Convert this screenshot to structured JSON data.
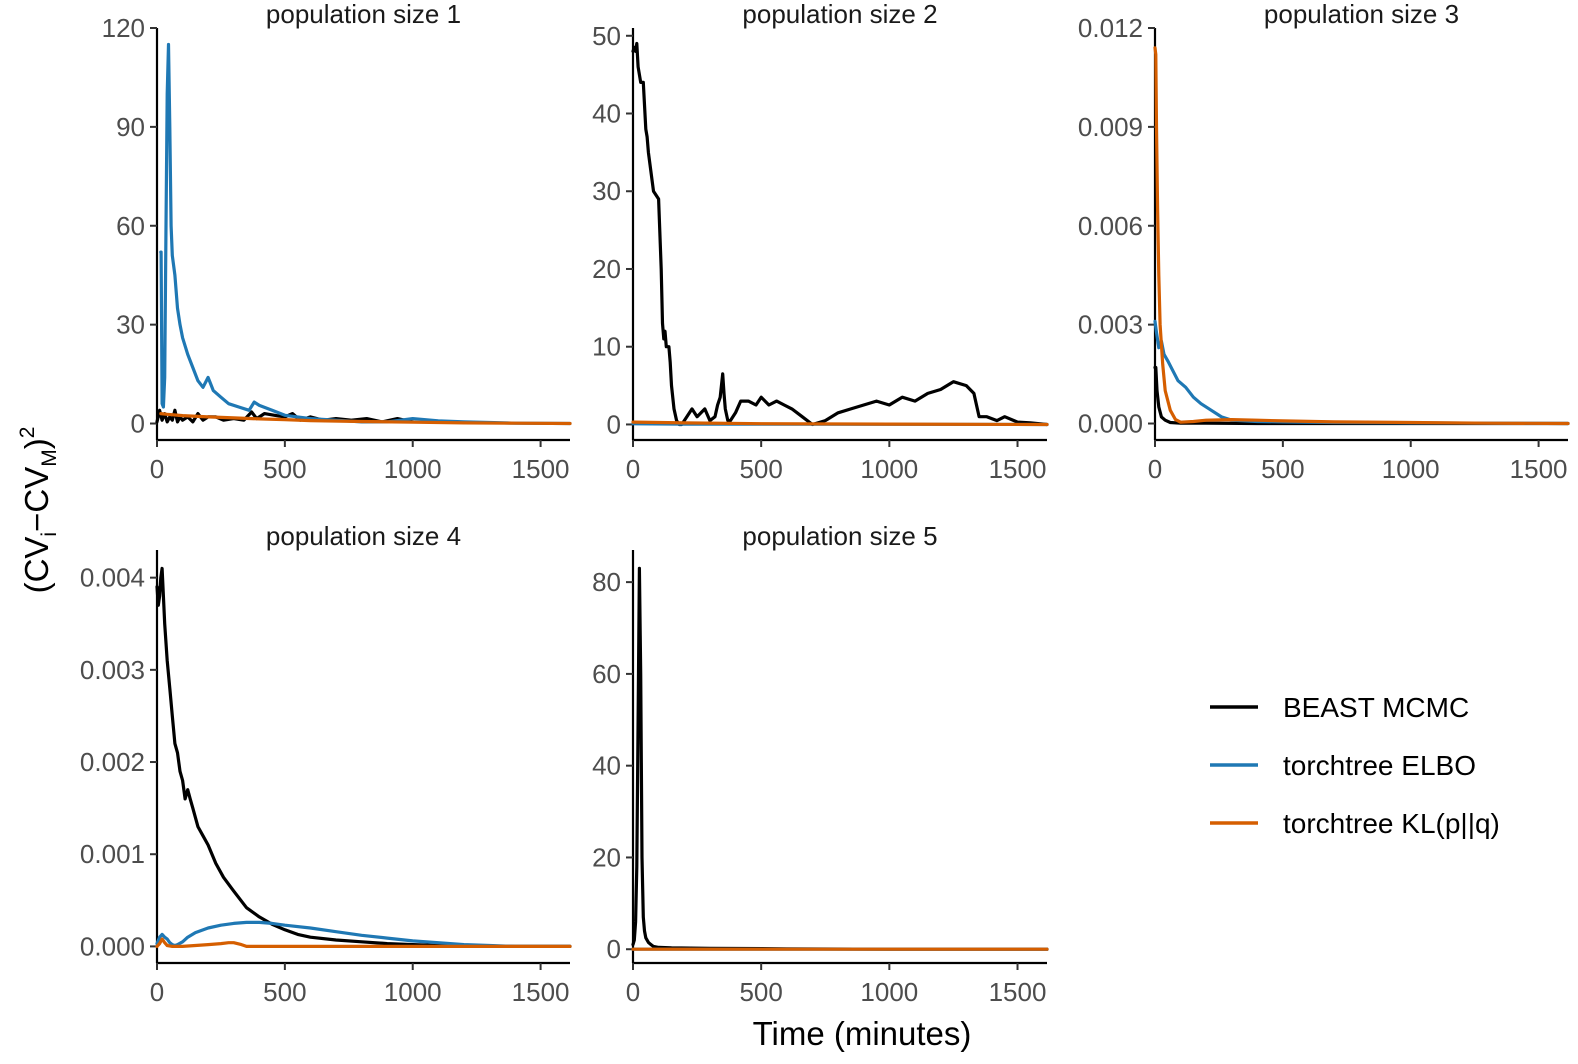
{
  "chart_data": {
    "type": "line",
    "xlabel": "Time (minutes)",
    "ylabel": {
      "open": "(",
      "cv1": "CV",
      "sub1": "i",
      "minus": "−",
      "cv2": "CV",
      "sub2": "M",
      "close": ")",
      "power": "2"
    },
    "legend_position": "right",
    "grid": false,
    "series_names": [
      "BEAST MCMC",
      "torchtree ELBO",
      "torchtree KL(p||q)"
    ],
    "colors": {
      "BEAST MCMC": "#000000",
      "torchtree ELBO": "#1f78b4",
      "torchtree KL(p||q)": "#d55e00"
    },
    "xlim": [
      0,
      1615
    ],
    "xticks": [
      0,
      500,
      1000,
      1500
    ],
    "xtick_labels": [
      "0",
      "500",
      "1000",
      "1500"
    ],
    "panels": [
      {
        "title": "population size 1",
        "ylim": [
          -5,
          120
        ],
        "yticks": [
          0,
          30,
          60,
          90,
          120
        ],
        "ytick_labels": [
          "0",
          "30",
          "60",
          "90",
          "120"
        ],
        "series": [
          {
            "name": "BEAST MCMC",
            "x": [
              0,
              10,
              20,
              30,
              40,
              50,
              60,
              70,
              80,
              90,
              100,
              120,
              140,
              160,
              180,
              200,
              230,
              260,
              300,
              340,
              370,
              390,
              420,
              460,
              500,
              530,
              560,
              600,
              650,
              700,
              760,
              820,
              880,
              940,
              1000
            ],
            "y": [
              0.5,
              4,
              1,
              3,
              0.5,
              2,
              1,
              4,
              0.5,
              2,
              1,
              2,
              0.5,
              3,
              1,
              2,
              2,
              1,
              1.5,
              1,
              3.5,
              1.5,
              3,
              2.5,
              2,
              3,
              1,
              2,
              1,
              1.5,
              1,
              1.5,
              0.5,
              1.5,
              0.5
            ]
          },
          {
            "name": "torchtree ELBO",
            "x": [
              15,
              16,
              20,
              25,
              30,
              35,
              40,
              45,
              50,
              55,
              60,
              70,
              80,
              90,
              100,
              120,
              140,
              160,
              180,
              200,
              220,
              250,
              280,
              320,
              360,
              380,
              400,
              450,
              500,
              600,
              700,
              800,
              900,
              1000,
              1100,
              1200,
              1300,
              1400,
              1615
            ],
            "y": [
              52,
              52,
              6,
              5,
              14,
              60,
              100,
              115,
              90,
              60,
              51,
              45,
              35,
              30,
              26,
              21,
              17,
              13,
              11,
              14,
              10,
              8,
              6,
              5,
              4,
              6.5,
              5.5,
              4,
              2.5,
              1.5,
              1,
              0.5,
              0.5,
              1.5,
              0.8,
              0.5,
              0.3,
              0.1,
              0
            ]
          },
          {
            "name": "torchtree KL(p||q)",
            "x": [
              15,
              40,
              100,
              200,
              300,
              400,
              500,
              600,
              800,
              1000,
              1200,
              1400,
              1615
            ],
            "y": [
              3,
              2.8,
              2.4,
              2,
              1.7,
              1.4,
              1.2,
              0.9,
              0.6,
              0.4,
              0.2,
              0.1,
              0
            ]
          }
        ]
      },
      {
        "title": "population size 2",
        "ylim": [
          -2,
          51
        ],
        "yticks": [
          0,
          10,
          20,
          30,
          40,
          50
        ],
        "ytick_labels": [
          "0",
          "10",
          "20",
          "30",
          "40",
          "50"
        ],
        "series": [
          {
            "name": "BEAST MCMC",
            "x": [
              0,
              5,
              10,
              15,
              20,
              30,
              40,
              50,
              55,
              60,
              80,
              100,
              110,
              115,
              120,
              125,
              130,
              140,
              145,
              150,
              160,
              170,
              180,
              190,
              200,
              230,
              250,
              280,
              300,
              320,
              330,
              340,
              350,
              355,
              360,
              370,
              380,
              400,
              420,
              450,
              480,
              500,
              530,
              560,
              590,
              620,
              660,
              700,
              750,
              800,
              850,
              900,
              950,
              1000,
              1050,
              1100,
              1150,
              1200,
              1250,
              1300,
              1330,
              1350,
              1380,
              1420,
              1450,
              1500,
              1550,
              1615
            ],
            "y": [
              48,
              48.5,
              48,
              49,
              46,
              44,
              44,
              38,
              37,
              35,
              30,
              29,
              20,
              13,
              11,
              12,
              10,
              10,
              8,
              5,
              2,
              0.5,
              0,
              0,
              0.5,
              2,
              1,
              2,
              0.5,
              1,
              2.5,
              3.5,
              6.5,
              4,
              2,
              0.5,
              0.5,
              1.5,
              3,
              3,
              2.5,
              3.5,
              2.5,
              3,
              2.5,
              2,
              1,
              0,
              0.5,
              1.5,
              2,
              2.5,
              3,
              2.5,
              3.5,
              3,
              4,
              4.5,
              5.5,
              5,
              4,
              1,
              1,
              0.5,
              1,
              0.3,
              0.2,
              0
            ]
          },
          {
            "name": "torchtree ELBO",
            "x": [
              0,
              200,
              500,
              1000,
              1615
            ],
            "y": [
              0.1,
              0.05,
              0.05,
              0.02,
              0
            ]
          },
          {
            "name": "torchtree KL(p||q)",
            "x": [
              0,
              200,
              500,
              1000,
              1615
            ],
            "y": [
              0.3,
              0.2,
              0.1,
              0.05,
              0
            ]
          }
        ]
      },
      {
        "title": "population size 3",
        "ylim": [
          -0.0005,
          0.012
        ],
        "yticks": [
          0,
          0.003,
          0.006,
          0.009,
          0.012
        ],
        "ytick_labels": [
          "0.000",
          "0.003",
          "0.006",
          "0.009",
          "0.012"
        ],
        "series": [
          {
            "name": "BEAST MCMC",
            "x": [
              0,
              3,
              8,
              15,
              25,
              40,
              60,
              100,
              200,
              400,
              700,
              1000,
              1300,
              1615
            ],
            "y": [
              0.0017,
              0.0017,
              0.001,
              0.0005,
              0.0002,
              0.0001,
              3e-05,
              1e-05,
              1e-05,
              0,
              0,
              0,
              0,
              0
            ]
          },
          {
            "name": "torchtree ELBO",
            "x": [
              0,
              5,
              15,
              25,
              35,
              50,
              70,
              90,
              120,
              150,
              180,
              220,
              260,
              300,
              400,
              500,
              700,
              1000,
              1300,
              1615
            ],
            "y": [
              0.0031,
              0.0028,
              0.0023,
              0.0025,
              0.0021,
              0.0019,
              0.0016,
              0.0013,
              0.0011,
              0.0008,
              0.0006,
              0.0004,
              0.0002,
              0.0001,
              6e-05,
              5e-05,
              3e-05,
              2e-05,
              1e-05,
              0
            ]
          },
          {
            "name": "torchtree KL(p||q)",
            "x": [
              0,
              3,
              6,
              10,
              15,
              20,
              30,
              40,
              60,
              80,
              100,
              150,
              200,
              300,
              400,
              500,
              700,
              1000,
              1300,
              1615
            ],
            "y": [
              0.0114,
              0.0112,
              0.009,
              0.0065,
              0.0045,
              0.003,
              0.0018,
              0.001,
              0.0004,
              0.00012,
              4e-05,
              6e-05,
              0.0001,
              0.00012,
              0.0001,
              8e-05,
              5e-05,
              3e-05,
              1e-05,
              0
            ]
          }
        ]
      },
      {
        "title": "population size 4",
        "ylim": [
          -0.00018,
          0.0043
        ],
        "yticks": [
          0,
          0.001,
          0.002,
          0.003,
          0.004
        ],
        "ytick_labels": [
          "0.000",
          "0.001",
          "0.002",
          "0.003",
          "0.004"
        ],
        "series": [
          {
            "name": "BEAST MCMC",
            "x": [
              0,
              5,
              10,
              15,
              20,
              25,
              30,
              40,
              50,
              60,
              70,
              80,
              90,
              100,
              110,
              120,
              130,
              140,
              160,
              180,
              200,
              230,
              260,
              300,
              350,
              400,
              450,
              500,
              550,
              600,
              700,
              800,
              900,
              1000,
              1100,
              1200,
              1400,
              1615
            ],
            "y": [
              0.0039,
              0.0037,
              0.0038,
              0.004,
              0.0041,
              0.0038,
              0.0035,
              0.0031,
              0.0028,
              0.0025,
              0.0022,
              0.0021,
              0.0019,
              0.0018,
              0.0016,
              0.0017,
              0.0016,
              0.0015,
              0.0013,
              0.0012,
              0.0011,
              0.0009,
              0.00075,
              0.0006,
              0.00042,
              0.00032,
              0.00024,
              0.00018,
              0.00013,
              0.0001,
              7e-05,
              5e-05,
              3e-05,
              2e-05,
              1e-05,
              1e-05,
              0,
              0
            ]
          },
          {
            "name": "torchtree ELBO",
            "x": [
              0,
              10,
              20,
              30,
              40,
              50,
              60,
              70,
              80,
              100,
              120,
              150,
              200,
              250,
              300,
              350,
              400,
              450,
              500,
              600,
              700,
              800,
              900,
              1000,
              1100,
              1200,
              1300,
              1400,
              1500,
              1615
            ],
            "y": [
              3e-05,
              0.0001,
              0.00013,
              0.0001,
              8e-05,
              4e-05,
              2e-05,
              1e-05,
              2e-05,
              5e-05,
              0.0001,
              0.00015,
              0.0002,
              0.00023,
              0.00025,
              0.00026,
              0.00026,
              0.00025,
              0.00023,
              0.0002,
              0.00016,
              0.00012,
              9e-05,
              6e-05,
              4e-05,
              2e-05,
              1e-05,
              0,
              0,
              0
            ]
          },
          {
            "name": "torchtree KL(p||q)",
            "x": [
              0,
              10,
              20,
              30,
              40,
              60,
              100,
              150,
              200,
              250,
              280,
              300,
              330,
              350,
              400,
              500,
              800,
              1200,
              1615
            ],
            "y": [
              0,
              3e-05,
              8e-05,
              4e-05,
              1e-05,
              0,
              0,
              1e-05,
              2e-05,
              3e-05,
              4e-05,
              4e-05,
              2e-05,
              0,
              0,
              0,
              0,
              0,
              0
            ]
          }
        ]
      },
      {
        "title": "population size 5",
        "ylim": [
          -3,
          87
        ],
        "yticks": [
          0,
          20,
          40,
          60,
          80
        ],
        "ytick_labels": [
          "0",
          "20",
          "40",
          "60",
          "80"
        ],
        "series": [
          {
            "name": "BEAST MCMC",
            "x": [
              0,
              5,
              10,
              15,
              20,
              25,
              30,
              35,
              40,
              45,
              50,
              60,
              70,
              80,
              100,
              150,
              300,
              600,
              1000,
              1615
            ],
            "y": [
              1,
              2,
              6,
              18,
              50,
              83,
              60,
              20,
              7,
              4,
              2.5,
              1.5,
              1,
              0.6,
              0.4,
              0.3,
              0.2,
              0.1,
              0,
              0
            ]
          },
          {
            "name": "torchtree ELBO",
            "x": [
              0,
              500,
              1000,
              1615
            ],
            "y": [
              0,
              0,
              0,
              0
            ]
          },
          {
            "name": "torchtree KL(p||q)",
            "x": [
              0,
              500,
              1000,
              1615
            ],
            "y": [
              0,
              0,
              0,
              0
            ]
          }
        ]
      }
    ]
  }
}
